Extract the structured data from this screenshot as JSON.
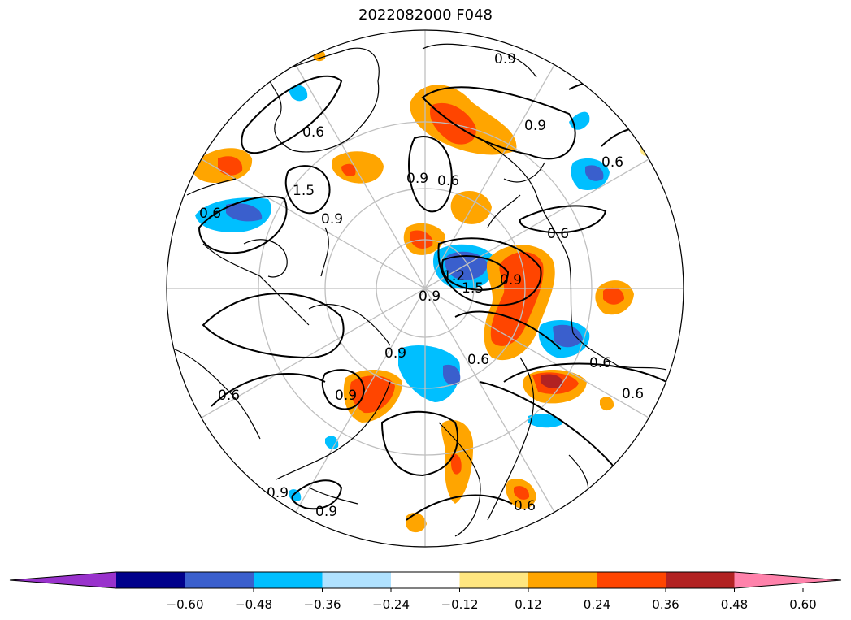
{
  "title": "2022082000 F048",
  "map": {
    "projection": "north-polar-stereographic",
    "contour_labels": [
      "0.6",
      "0.9",
      "0.6",
      "0.6",
      "0.9",
      "0.9",
      "1.5",
      "0.9",
      "1.5",
      "1.2",
      "0.9",
      "0.6",
      "0.9",
      "0.6",
      "0.9",
      "0.6",
      "0.6",
      "0.9",
      "0.6",
      "0.9",
      "0.9",
      "0.6",
      "0.6"
    ],
    "anomaly_colors": {
      "strong_positive": "#b22222",
      "positive_high": "#ff4500",
      "positive_mid": "#ffa500",
      "positive_low": "#ffe680",
      "negative_low": "#b0e2ff",
      "negative_mid": "#00bfff",
      "negative_high": "#3a5fcd"
    }
  },
  "colorbar": {
    "ticks": [
      "−0.60",
      "−0.48",
      "−0.36",
      "−0.24",
      "−0.12",
      "0.12",
      "0.24",
      "0.36",
      "0.48",
      "0.60"
    ],
    "colors": [
      "#9932cc",
      "#00008b",
      "#3a5fcd",
      "#00bfff",
      "#b0e2ff",
      "#ffffff",
      "#ffe680",
      "#ffa500",
      "#ff4500",
      "#b22222",
      "#ff82ab"
    ]
  }
}
